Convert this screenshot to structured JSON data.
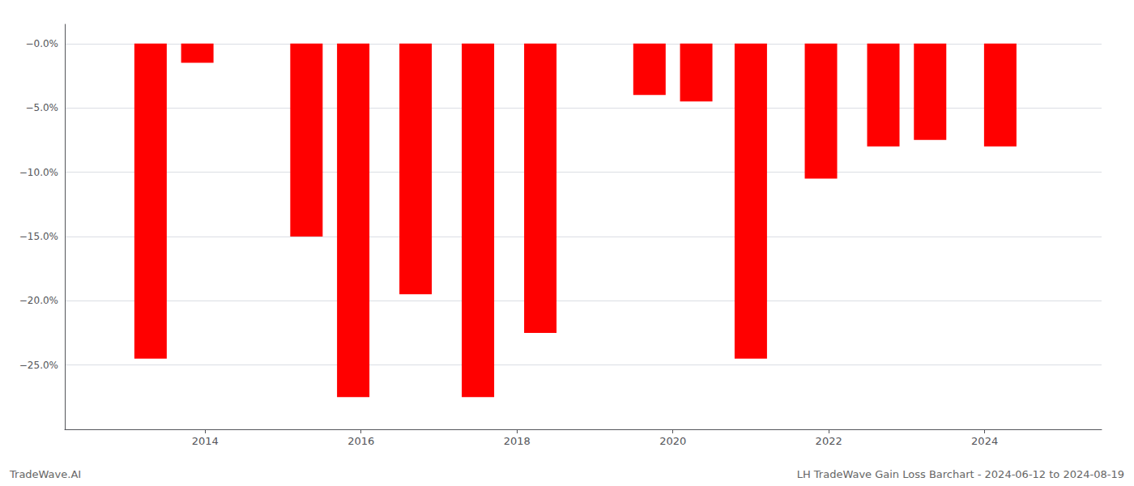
{
  "chart_data": {
    "type": "bar",
    "x": [
      2013.3,
      2013.9,
      2015.3,
      2015.9,
      2016.7,
      2017.5,
      2018.3,
      2019.7,
      2020.3,
      2021.0,
      2021.9,
      2022.7,
      2023.3,
      2024.2
    ],
    "values": [
      -24.5,
      -1.5,
      -15.0,
      -27.5,
      -19.5,
      -27.5,
      -22.5,
      -4.0,
      -4.5,
      -24.5,
      -10.5,
      -8.0,
      -7.5,
      -8.0
    ],
    "color": "#ff0000",
    "xlim": [
      2012.2,
      2025.5
    ],
    "xticks": [
      2014,
      2016,
      2018,
      2020,
      2022,
      2024
    ],
    "ylim": [
      -30,
      1.5
    ],
    "yticks": [
      {
        "value": 0.0,
        "label": "−0.0%"
      },
      {
        "value": -5.0,
        "label": "−5.0%"
      },
      {
        "value": -10.0,
        "label": "−10.0%"
      },
      {
        "value": -15.0,
        "label": "−15.0%"
      },
      {
        "value": -20.0,
        "label": "−20.0%"
      },
      {
        "value": -25.0,
        "label": "−25.0%"
      }
    ],
    "grid": true,
    "annotations": [
      "TradeWave.AI",
      "LH TradeWave Gain Loss Barchart - 2024-06-12 to 2024-08-19"
    ]
  }
}
